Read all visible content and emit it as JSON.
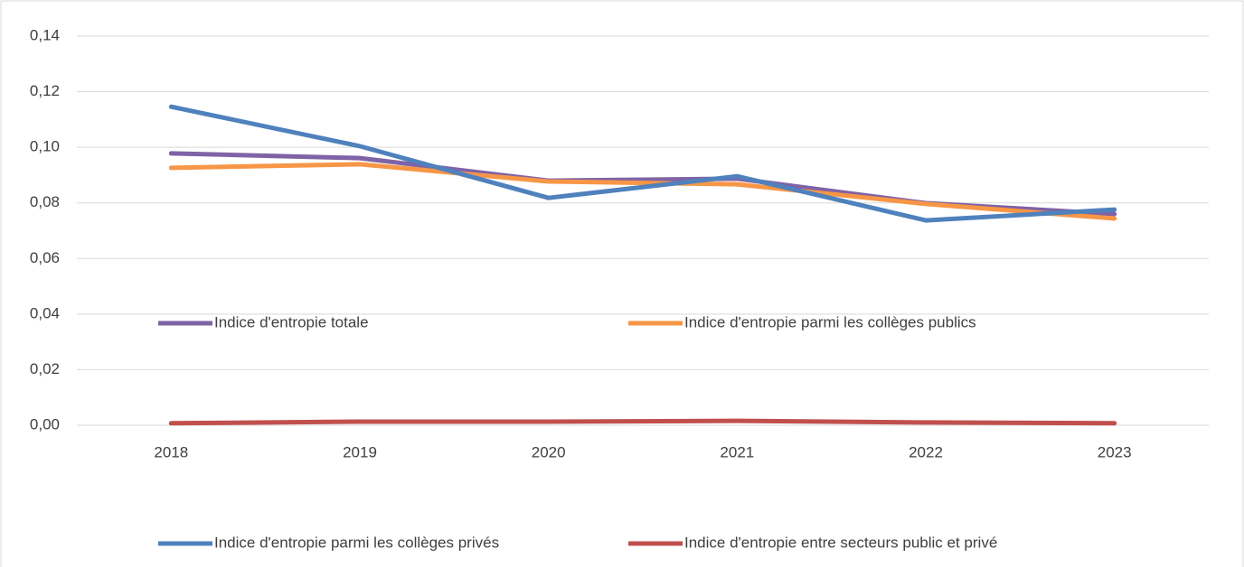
{
  "chart_data": {
    "type": "line",
    "categories": [
      "2018",
      "2019",
      "2020",
      "2021",
      "2022",
      "2023"
    ],
    "series": [
      {
        "name": "Indice d'entropie totale",
        "color": "#7f63a6",
        "values": [
          0.0978,
          0.0961,
          0.088,
          0.0887,
          0.0799,
          0.076
        ]
      },
      {
        "name": "Indice d'entropie parmi les collèges publics",
        "color": "#f79646",
        "values": [
          0.0926,
          0.0939,
          0.0877,
          0.0867,
          0.0796,
          0.0744
        ]
      },
      {
        "name": "Indice d'entropie parmi les collèges privés",
        "color": "#4f81bd",
        "values": [
          0.1146,
          0.1004,
          0.0818,
          0.0896,
          0.0737,
          0.0776
        ]
      },
      {
        "name": "Indice d'entropie entre secteurs public et privé",
        "color": "#c0504d",
        "values": [
          0.0007,
          0.0013,
          0.0013,
          0.0016,
          0.001,
          0.0007
        ]
      }
    ],
    "ylim": [
      0,
      0.14
    ],
    "yticks": [
      {
        "value": 0,
        "label": "0,00"
      },
      {
        "value": 0.02,
        "label": "0,02"
      },
      {
        "value": 0.04,
        "label": "0,04"
      },
      {
        "value": 0.06,
        "label": "0,06"
      },
      {
        "value": 0.08,
        "label": "0,08"
      },
      {
        "value": 0.1,
        "label": "0,10"
      },
      {
        "value": 0.12,
        "label": "0,12"
      },
      {
        "value": 0.14,
        "label": "0,14"
      }
    ],
    "grid": true
  }
}
